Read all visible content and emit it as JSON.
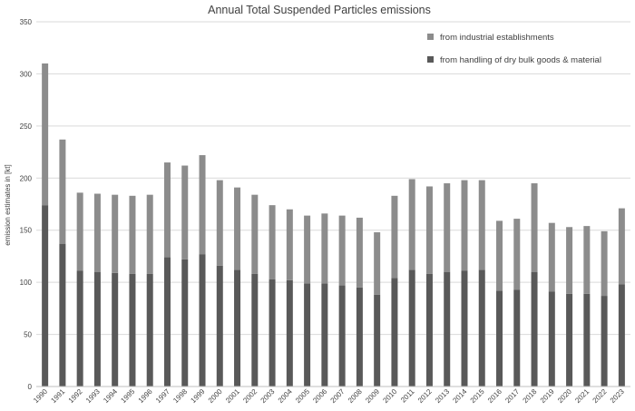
{
  "chart_data": {
    "type": "bar",
    "stacked": true,
    "title": "Annual Total Suspended Particles emissions",
    "ylabel": "emission estimates in [kt]",
    "xlabel": "",
    "ylim": [
      0,
      350
    ],
    "yticks": [
      0,
      50,
      100,
      150,
      200,
      250,
      300,
      350
    ],
    "grid": true,
    "legend_position": "top-right",
    "categories": [
      "1990",
      "1991",
      "1992",
      "1993",
      "1994",
      "1995",
      "1996",
      "1997",
      "1998",
      "1999",
      "2000",
      "2001",
      "2002",
      "2003",
      "2004",
      "2005",
      "2006",
      "2007",
      "2008",
      "2009",
      "2010",
      "2011",
      "2012",
      "2013",
      "2014",
      "2015",
      "2016",
      "2017",
      "2018",
      "2019",
      "2020",
      "2021",
      "2022",
      "2023"
    ],
    "series": [
      {
        "name": "from handling of dry bulk goods & material",
        "color": "#595959",
        "values": [
          174,
          137,
          111,
          110,
          109,
          108,
          108,
          124,
          122,
          127,
          116,
          112,
          108,
          103,
          102,
          99,
          99,
          97,
          95,
          88,
          104,
          112,
          108,
          110,
          111,
          112,
          92,
          93,
          110,
          91,
          89,
          89,
          87,
          98
        ]
      },
      {
        "name": "from industrial establishments",
        "color": "#8c8c8c",
        "values": [
          136,
          100,
          75,
          75,
          75,
          75,
          76,
          91,
          90,
          95,
          82,
          79,
          76,
          71,
          68,
          65,
          67,
          67,
          67,
          60,
          79,
          87,
          84,
          85,
          87,
          86,
          67,
          68,
          85,
          66,
          64,
          65,
          62,
          73
        ]
      }
    ]
  }
}
